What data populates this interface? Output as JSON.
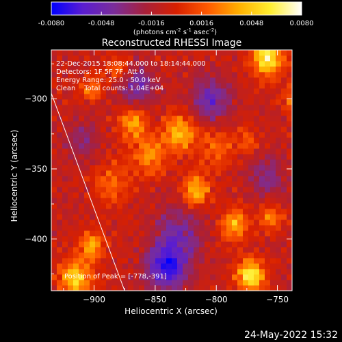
{
  "footer": {
    "datetime": "24-May-2022 15:32"
  },
  "colorbar": {
    "min": -0.008,
    "max": 0.008,
    "tick_labels": [
      "-0.0080",
      "-0.0048",
      "-0.0016",
      "0.0016",
      "0.0048",
      "0.0080"
    ],
    "tick_values": [
      -0.008,
      -0.0048,
      -0.0016,
      0.0016,
      0.0048,
      0.008
    ],
    "units_main": "(photons cm",
    "units_sup1": "-2",
    "units_s": " s",
    "units_sup2": "-1",
    "units_asec": " asec",
    "units_sup3": "-2",
    "units_close": ")",
    "stops": [
      "#0000ff",
      "#5a1dd0",
      "#7a2d9a",
      "#a8203a",
      "#d82000",
      "#ff5a00",
      "#ffb000",
      "#ffee30",
      "#ffffff"
    ]
  },
  "chart_data": {
    "type": "heatmap",
    "title": "Reconstructed RHESSI Image",
    "xlabel": "Heliocentric X (arcsec)",
    "ylabel": "Heliocentric Y (arcsec)",
    "xlim": [
      -935,
      -738
    ],
    "ylim": [
      -437,
      -265
    ],
    "x_ticks": [
      -900,
      -850,
      -800,
      -750
    ],
    "x_tick_labels": [
      "−900",
      "−850",
      "−800",
      "−750"
    ],
    "y_ticks": [
      -300,
      -350,
      -400
    ],
    "y_tick_labels": [
      "−300",
      "−350",
      "−400"
    ],
    "annotations": {
      "time_range": "22-Dec-2015 18:08:44.000 to 18:14:44.000",
      "detectors": "Detectors: 1F 5F 7F, Att 0",
      "energy": "Energy Range: 25.0 - 50.0 keV",
      "clean": "Clean    Total counts: 1.04E+04",
      "peak": "Position of Peak = [-778,-391]"
    },
    "peak_position": [
      -778,
      -391
    ],
    "limb_line": [
      [
        -935,
        -296
      ],
      [
        -875,
        -437
      ]
    ],
    "sources": [
      {
        "x": -830,
        "y": -324,
        "sigma": 9,
        "value": 0.0052
      },
      {
        "x": -817,
        "y": -365,
        "sigma": 8,
        "value": 0.0054
      },
      {
        "x": -868,
        "y": -317,
        "sigma": 8,
        "value": 0.0046
      },
      {
        "x": -855,
        "y": -340,
        "sigma": 10,
        "value": 0.0038
      },
      {
        "x": -800,
        "y": -335,
        "sigma": 10,
        "value": 0.003
      },
      {
        "x": -885,
        "y": -360,
        "sigma": 11,
        "value": 0.0026
      },
      {
        "x": -880,
        "y": -278,
        "sigma": 7,
        "value": 0.0028
      },
      {
        "x": -902,
        "y": -405,
        "sigma": 7,
        "value": 0.0046
      },
      {
        "x": -915,
        "y": -428,
        "sigma": 9,
        "value": 0.0062
      },
      {
        "x": -772,
        "y": -426,
        "sigma": 8,
        "value": 0.0072
      },
      {
        "x": -785,
        "y": -390,
        "sigma": 8,
        "value": 0.005
      },
      {
        "x": -755,
        "y": -385,
        "sigma": 6,
        "value": 0.0036
      },
      {
        "x": -758,
        "y": -270,
        "sigma": 9,
        "value": 0.0072
      },
      {
        "x": -775,
        "y": -330,
        "sigma": 6,
        "value": 0.0024
      },
      {
        "x": -902,
        "y": -293,
        "sigma": 6,
        "value": 0.0032
      },
      {
        "x": -735,
        "y": -300,
        "sigma": 8,
        "value": 0.0028
      },
      {
        "x": -840,
        "y": -420,
        "sigma": 12,
        "value": -0.006
      },
      {
        "x": -805,
        "y": -300,
        "sigma": 11,
        "value": -0.0042
      },
      {
        "x": -865,
        "y": -290,
        "sigma": 10,
        "value": -0.0038
      },
      {
        "x": -830,
        "y": -395,
        "sigma": 14,
        "value": -0.003
      },
      {
        "x": -760,
        "y": -355,
        "sigma": 10,
        "value": -0.0028
      },
      {
        "x": -910,
        "y": -330,
        "sigma": 10,
        "value": -0.0024
      }
    ]
  }
}
